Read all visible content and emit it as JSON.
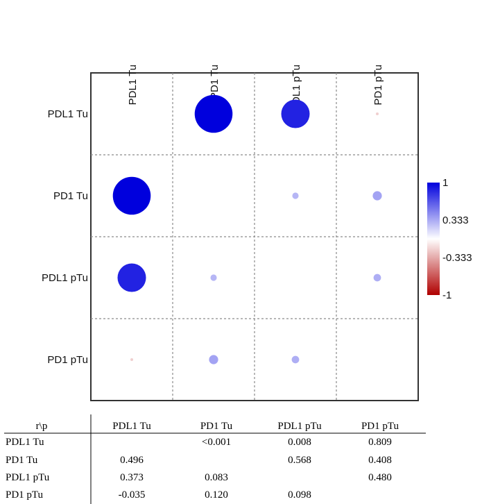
{
  "chart_data": [
    {
      "type": "heatmap",
      "variables": [
        "PDL1 Tu",
        "PD1 Tu",
        "PDL1 pTu",
        "PD1 pTu"
      ],
      "lower_triangle": "r",
      "upper_triangle": "p",
      "r": [
        [
          null,
          0.496,
          0.373,
          -0.035
        ],
        [
          0.496,
          null,
          0.083,
          0.12
        ],
        [
          0.373,
          0.083,
          null,
          0.098
        ],
        [
          -0.035,
          0.12,
          0.098,
          null
        ]
      ],
      "grid": true,
      "colorbar": {
        "range": [
          -1,
          1
        ],
        "tick_labels": [
          "1",
          "0.333",
          "-0.333",
          "-1"
        ],
        "tick_values": [
          1,
          0.333,
          -0.333,
          -1
        ],
        "colors": {
          "positive": "#0000dd",
          "zero": "#ffffff",
          "negative": "#b00000"
        },
        "placement": "right"
      }
    },
    {
      "type": "table",
      "corner_label": "r\\p",
      "columns": [
        "PDL1 Tu",
        "PD1 Tu",
        "PDL1 pTu",
        "PD1 pTu"
      ],
      "rows": [
        {
          "label": "PDL1 Tu",
          "cells": [
            "",
            "<0.001",
            "0.008",
            "0.809"
          ]
        },
        {
          "label": "PD1 Tu",
          "cells": [
            "0.496",
            "",
            "0.568",
            "0.408"
          ]
        },
        {
          "label": "PDL1 pTu",
          "cells": [
            "0.373",
            "0.083",
            "",
            "0.480"
          ]
        },
        {
          "label": "PD1 pTu",
          "cells": [
            "-0.035",
            "0.120",
            "0.098",
            ""
          ]
        }
      ]
    }
  ]
}
